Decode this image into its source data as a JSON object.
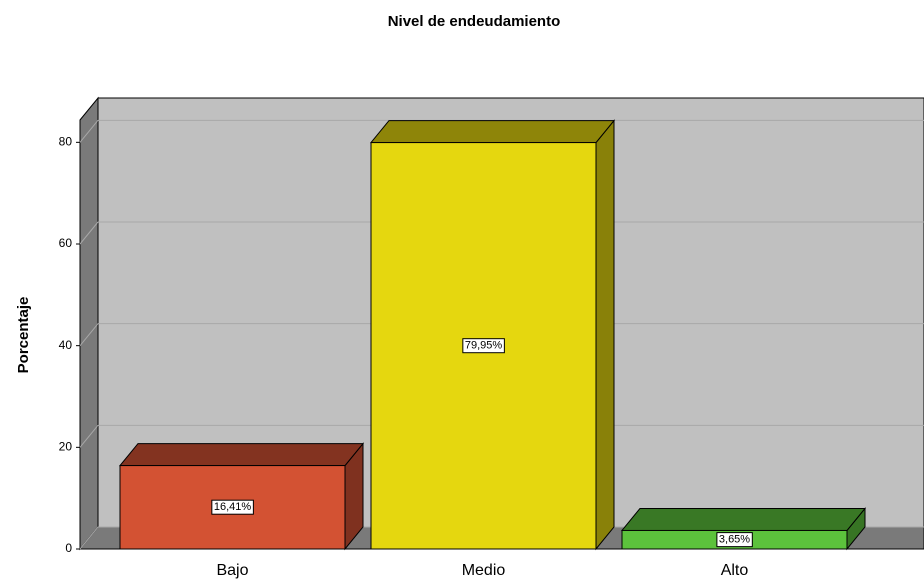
{
  "chart_data": {
    "type": "bar3d",
    "title": "Nivel de endeudamiento",
    "y_label": "Porcentaje",
    "categories": [
      "Bajo",
      "Medio",
      "Alto"
    ],
    "values": [
      16.41,
      79.95,
      3.65
    ],
    "value_labels": [
      "16,41%",
      "79,95%",
      "3,65%"
    ],
    "colors": [
      "#d35233",
      "#e5d70f",
      "#5cc23c"
    ],
    "ylim": [
      0,
      84
    ],
    "yticks": [
      0,
      20,
      40,
      60,
      80
    ],
    "grid": true
  }
}
